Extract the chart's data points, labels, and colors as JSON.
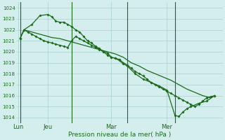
{
  "title": "",
  "xlabel": "Pression niveau de la mer( hPa )",
  "ylabel": "",
  "background_color": "#d4eeee",
  "grid_color": "#aad0d0",
  "line_color": "#1a6b1a",
  "ylim": [
    1013.5,
    1024.5
  ],
  "yticks": [
    1014,
    1015,
    1016,
    1017,
    1018,
    1019,
    1020,
    1021,
    1022,
    1023,
    1024
  ],
  "x_tick_labels": [
    "Lun",
    "Jeu",
    "Mar",
    "Mer"
  ],
  "x_tick_positions": [
    0.5,
    8,
    24,
    38
  ],
  "vlines": [
    1,
    14,
    28,
    40
  ],
  "xlim": [
    0,
    52
  ],
  "series1_x": [
    1,
    2,
    3,
    4,
    5,
    6,
    7,
    8,
    9,
    10,
    11,
    12,
    13,
    14,
    15,
    16,
    17,
    18,
    19,
    20,
    21,
    22,
    23,
    24,
    25,
    26,
    27,
    28,
    29,
    30,
    31,
    32,
    33,
    34,
    35,
    36,
    37,
    38,
    39,
    40,
    41,
    42,
    43,
    44,
    45,
    46,
    47,
    48,
    49,
    50
  ],
  "series1_y": [
    1021.2,
    1022.0,
    1021.8,
    1021.6,
    1021.4,
    1021.2,
    1021.0,
    1020.9,
    1020.8,
    1020.7,
    1020.6,
    1020.5,
    1020.4,
    1021.0,
    1021.4,
    1021.2,
    1021.0,
    1020.8,
    1020.6,
    1020.4,
    1020.2,
    1020.0,
    1019.9,
    1019.5,
    1019.4,
    1019.3,
    1019.0,
    1018.8,
    1018.5,
    1018.2,
    1018.0,
    1017.8,
    1017.5,
    1017.2,
    1017.0,
    1016.8,
    1016.6,
    1016.4,
    1016.2,
    1016.0,
    1015.8,
    1015.6,
    1015.4,
    1015.2,
    1015.0,
    1015.2,
    1015.5,
    1015.8,
    1015.9,
    1016.0
  ],
  "series2_x": [
    1,
    2,
    4,
    6,
    8,
    9,
    10,
    11,
    12,
    13,
    14,
    15,
    16,
    17,
    18,
    19,
    20,
    21,
    22,
    23,
    24,
    25,
    26,
    27,
    28,
    30,
    32,
    34,
    36,
    38,
    40,
    41,
    42,
    43,
    44,
    46,
    48,
    50
  ],
  "series2_y": [
    1021.2,
    1022.0,
    1022.5,
    1023.3,
    1023.4,
    1023.2,
    1022.8,
    1022.7,
    1022.7,
    1022.5,
    1022.3,
    1022.0,
    1021.8,
    1021.4,
    1021.0,
    1020.8,
    1020.5,
    1020.3,
    1020.0,
    1019.7,
    1019.5,
    1019.4,
    1019.2,
    1018.9,
    1018.7,
    1018.0,
    1017.5,
    1017.2,
    1016.9,
    1016.5,
    1014.2,
    1014.1,
    1014.5,
    1014.8,
    1015.0,
    1015.3,
    1015.5,
    1016.0
  ],
  "series3_x": [
    1,
    2,
    3,
    5,
    7,
    9,
    11,
    13,
    15,
    17,
    19,
    21,
    23,
    25,
    27,
    29,
    31,
    33,
    35,
    37,
    39,
    41,
    43,
    45,
    47,
    49
  ],
  "series3_y": [
    1021.2,
    1022.0,
    1021.9,
    1021.7,
    1021.5,
    1021.3,
    1021.2,
    1021.0,
    1020.8,
    1020.6,
    1020.4,
    1020.2,
    1020.0,
    1019.8,
    1019.5,
    1019.0,
    1018.7,
    1018.3,
    1018.0,
    1017.7,
    1017.4,
    1017.0,
    1016.6,
    1016.3,
    1016.0,
    1015.8
  ]
}
